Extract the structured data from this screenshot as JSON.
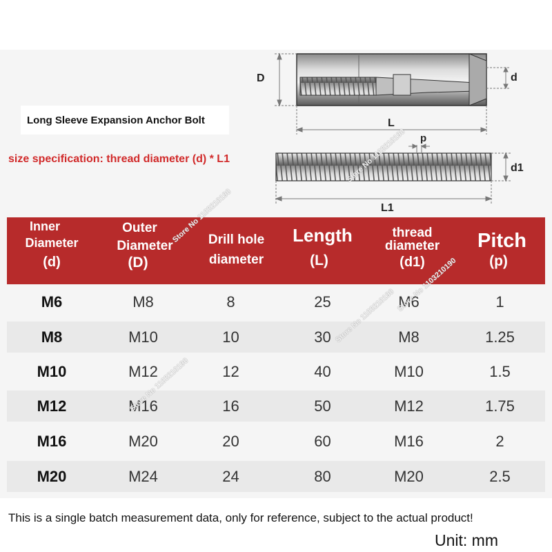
{
  "title": "Long Sleeve Expansion Anchor Bolt",
  "size_spec": "size specification: thread diameter (d) * L1",
  "diagram_labels": {
    "D": "D",
    "d": "d",
    "L": "L",
    "p": "p",
    "d1": "d1",
    "L1": "L1"
  },
  "table": {
    "headers": [
      {
        "l1": "Inner",
        "l2": "Diameter",
        "l3": "(d)"
      },
      {
        "l1": "Outer",
        "l2": "Diameter",
        "l3": "(D)"
      },
      {
        "l1": "Drill hole",
        "l2": "diameter",
        "l3": ""
      },
      {
        "l1": "Length",
        "l2": "(L)",
        "l3": ""
      },
      {
        "l1": "thread",
        "l2": "diameter",
        "l3": "(d1)"
      },
      {
        "l1": "Pitch",
        "l2": "(p)",
        "l3": ""
      }
    ],
    "rows": [
      {
        "d": "M6",
        "D": "M8",
        "drill": "8",
        "L": "25",
        "d1": "M6",
        "p": "1"
      },
      {
        "d": "M8",
        "D": "M10",
        "drill": "10",
        "L": "30",
        "d1": "M8",
        "p": "1.25"
      },
      {
        "d": "M10",
        "D": "M12",
        "drill": "12",
        "L": "40",
        "d1": "M10",
        "p": "1.5"
      },
      {
        "d": "M12",
        "D": "M16",
        "drill": "16",
        "L": "50",
        "d1": "M12",
        "p": "1.75"
      },
      {
        "d": "M16",
        "D": "M20",
        "drill": "20",
        "L": "60",
        "d1": "M16",
        "p": "2"
      },
      {
        "d": "M20",
        "D": "M24",
        "drill": "24",
        "L": "80",
        "d1": "M20",
        "p": "2.5"
      }
    ]
  },
  "footer_note": "This is a single batch measurement data, only for reference, subject to the actual product!",
  "unit": "Unit: mm",
  "watermark": "Store No 1103210190",
  "colors": {
    "header_bg": "#b72b2b",
    "accent_red": "#d12a2a",
    "row_shade": "#e9e9e9"
  }
}
